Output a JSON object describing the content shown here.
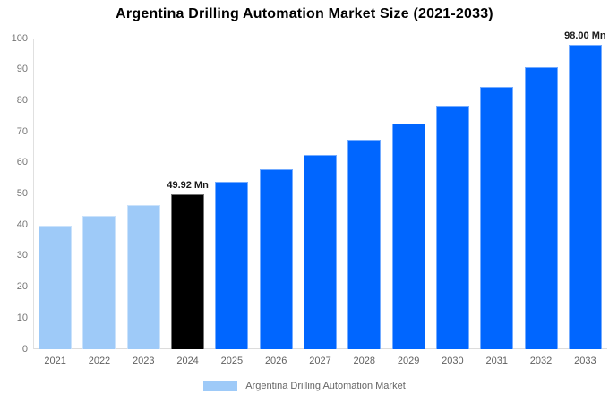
{
  "chart_data": {
    "type": "bar",
    "title": "Argentina Drilling Automation Market Size (2021-2033)",
    "categories": [
      "2021",
      "2022",
      "2023",
      "2024",
      "2025",
      "2026",
      "2027",
      "2028",
      "2029",
      "2030",
      "2031",
      "2032",
      "2033"
    ],
    "values": [
      39.87,
      42.97,
      46.31,
      49.92,
      53.8,
      57.99,
      62.5,
      67.36,
      72.6,
      78.25,
      84.33,
      90.89,
      98.0
    ],
    "unit": "Mn",
    "bar_colors": [
      "#9ECAF8",
      "#9ECAF8",
      "#9ECAF8",
      "#000000",
      "#0066FF",
      "#0066FF",
      "#0066FF",
      "#0066FF",
      "#0066FF",
      "#0066FF",
      "#0066FF",
      "#0066FF",
      "#0066FF"
    ],
    "annotations": [
      {
        "index": 3,
        "text": "49.92 Mn"
      },
      {
        "index": 12,
        "text": "98.00 Mn"
      }
    ],
    "xlabel": "",
    "ylabel": "",
    "ylim": [
      0,
      100
    ],
    "yticks": [
      0,
      10,
      20,
      30,
      40,
      50,
      60,
      70,
      80,
      90,
      100
    ],
    "grid": false,
    "legend": {
      "position": "bottom",
      "items": [
        {
          "label": "Argentina Drilling Automation Market",
          "color": "#9ECAF8"
        }
      ]
    }
  },
  "colors": {
    "historical_bar": "#9ECAF8",
    "base_year_bar": "#000000",
    "forecast_bar": "#0066FF",
    "axis_line": "#dedede",
    "tick_text": "#757575",
    "legend_text": "#666666",
    "title_text": "#000000",
    "background": "#ffffff"
  }
}
